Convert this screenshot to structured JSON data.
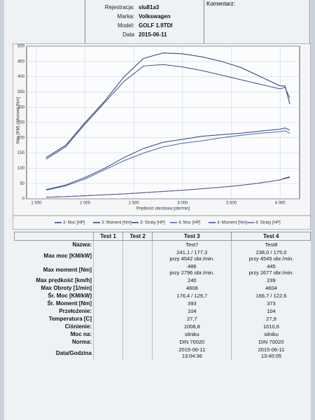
{
  "header": {
    "fields": [
      {
        "label": "Rejestracja:",
        "value": "slu81a3"
      },
      {
        "label": "Marka:",
        "value": "Volkswagen"
      },
      {
        "label": "Model:",
        "value": "GOLF 1.9TDI"
      },
      {
        "label": "Data",
        "value": "2015-06-11"
      }
    ],
    "comment_label": "Komentarz:"
  },
  "chart_data": {
    "type": "line",
    "x_label": "Prędkość obrotowa [obr/min]",
    "y_label": "Moc [KM] / Moment [Nm]",
    "x": [
      1600,
      1800,
      2000,
      2200,
      2400,
      2600,
      2800,
      3000,
      3200,
      3400,
      3600,
      3800,
      4000,
      4050,
      4100
    ],
    "xlim": [
      1400,
      4200
    ],
    "xticks": [
      {
        "value": 1500,
        "label": "1 500"
      },
      {
        "value": 2000,
        "label": "2 000"
      },
      {
        "value": 2500,
        "label": "2 500"
      },
      {
        "value": 3000,
        "label": "3 000"
      },
      {
        "value": 3500,
        "label": "3 500"
      },
      {
        "value": 4000,
        "label": "4 000"
      }
    ],
    "ylim": [
      0,
      500
    ],
    "yticks": [
      0,
      50,
      100,
      150,
      200,
      250,
      300,
      350,
      400,
      450,
      500
    ],
    "grid": true,
    "series": [
      {
        "name": "3: Moc [HP]",
        "color": "#2f3f86",
        "values": [
          30,
          45,
          70,
          100,
          135,
          165,
          185,
          195,
          205,
          210,
          215,
          222,
          228,
          232,
          225
        ]
      },
      {
        "name": "3: Moment [Nm]",
        "color": "#2b3570",
        "values": [
          135,
          175,
          250,
          320,
          400,
          460,
          478,
          475,
          465,
          450,
          430,
          400,
          370,
          370,
          310
        ]
      },
      {
        "name": "3: Straty [HP]",
        "color": "#3a3f6e",
        "values": [
          5,
          7,
          10,
          13,
          16,
          20,
          24,
          28,
          33,
          38,
          44,
          52,
          62,
          68,
          72
        ]
      },
      {
        "name": "4: Moc [HP]",
        "color": "#4a64b0",
        "values": [
          28,
          42,
          65,
          95,
          125,
          150,
          170,
          182,
          190,
          200,
          208,
          215,
          220,
          223,
          215
        ]
      },
      {
        "name": "4: Moment [Nm]",
        "color": "#3a4a8e",
        "values": [
          130,
          170,
          245,
          315,
          385,
          435,
          440,
          432,
          420,
          405,
          390,
          375,
          360,
          365,
          330
        ]
      },
      {
        "name": "4: Straty [HP]",
        "color": "#6a5aa0",
        "values": [
          5,
          7,
          10,
          13,
          16,
          20,
          24,
          28,
          33,
          38,
          44,
          52,
          62,
          66,
          70
        ]
      }
    ]
  },
  "table": {
    "columns": [
      "Test 1",
      "Test 2",
      "Test 3",
      "Test 4"
    ],
    "rows": [
      {
        "label": "Nazwa:",
        "test3": [
          "Test7"
        ],
        "test4": [
          "Test8"
        ]
      },
      {
        "label": "Max moc [KM/kW]",
        "test3": [
          "241,1 / 177,3",
          "przy 4542 obr./min."
        ],
        "test4": [
          "238,0 / 175,0",
          "przy 4545 obr./min."
        ]
      },
      {
        "label": "Max moment [Nm]",
        "test3": [
          "486",
          "przy 2796 obr./min."
        ],
        "test4": [
          "445",
          "przy 2677 obr./min."
        ]
      },
      {
        "label": "Max prędkość [km/h]",
        "test3": [
          "240"
        ],
        "test4": [
          "239"
        ]
      },
      {
        "label": "Max Obroty [1/min]",
        "test3": [
          "4608"
        ],
        "test4": [
          "4604"
        ]
      },
      {
        "label": "Śr. Moc [KM/kW]",
        "test3": [
          "176,4 / 129,7"
        ],
        "test4": [
          "166,7 / 122,6"
        ]
      },
      {
        "label": "Śr. Moment [Nm]",
        "test3": [
          "393"
        ],
        "test4": [
          "373"
        ]
      },
      {
        "label": "Przełożenie:",
        "test3": [
          "104"
        ],
        "test4": [
          "104"
        ]
      },
      {
        "label": "Temperatura [C]",
        "test3": [
          "27,7"
        ],
        "test4": [
          "27,9"
        ]
      },
      {
        "label": "Ciśnienie:",
        "test3": [
          "1008,8"
        ],
        "test4": [
          "1010,6"
        ]
      },
      {
        "label": "Moc na:",
        "test3": [
          "silniku"
        ],
        "test4": [
          "silniku"
        ]
      },
      {
        "label": "Norma:",
        "test3": [
          "DIN 70020"
        ],
        "test4": [
          "DIN 70020"
        ]
      },
      {
        "label": "Data/Godzina",
        "test3": [
          "2015-06-11",
          "13:04:36"
        ],
        "test4": [
          "2015-06-11",
          "13:40:05"
        ]
      }
    ]
  }
}
